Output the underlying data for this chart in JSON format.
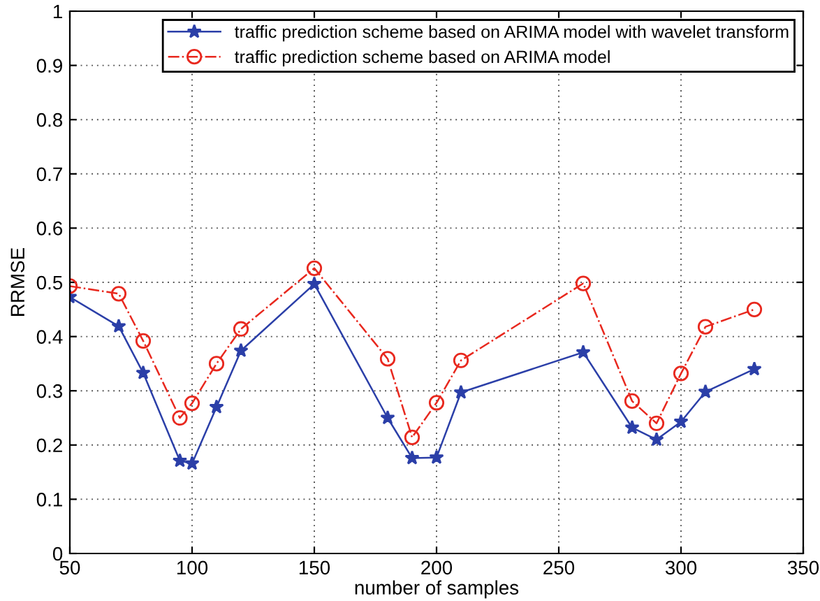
{
  "chart_data": {
    "type": "line",
    "xlabel": "number of samples",
    "ylabel": "RRMSE",
    "x": [
      50,
      70,
      80,
      95,
      100,
      110,
      120,
      150,
      180,
      190,
      200,
      210,
      260,
      280,
      290,
      300,
      310,
      330
    ],
    "series": [
      {
        "name": "traffic prediction scheme based on ARIMA model with wavelet transform",
        "color": "#2b3fa8",
        "marker": "star",
        "line_style": "solid",
        "values": [
          0.473,
          0.419,
          0.333,
          0.171,
          0.166,
          0.27,
          0.374,
          0.497,
          0.25,
          0.176,
          0.177,
          0.297,
          0.371,
          0.232,
          0.21,
          0.243,
          0.298,
          0.34
        ]
      },
      {
        "name": "traffic prediction scheme based on ARIMA model",
        "color": "#e8281e",
        "marker": "circle",
        "line_style": "dashdot",
        "values": [
          0.493,
          0.479,
          0.392,
          0.25,
          0.277,
          0.35,
          0.414,
          0.526,
          0.359,
          0.214,
          0.278,
          0.356,
          0.498,
          0.281,
          0.24,
          0.332,
          0.418,
          0.45
        ]
      }
    ],
    "xlim": [
      50,
      350
    ],
    "xticks": [
      50,
      100,
      150,
      200,
      250,
      300,
      350
    ],
    "ylim": [
      0,
      1
    ],
    "yticks": [
      0,
      0.1,
      0.2,
      0.3,
      0.4,
      0.5,
      0.6,
      0.7,
      0.8,
      0.9,
      1
    ],
    "grid": true,
    "legend": "top right"
  }
}
